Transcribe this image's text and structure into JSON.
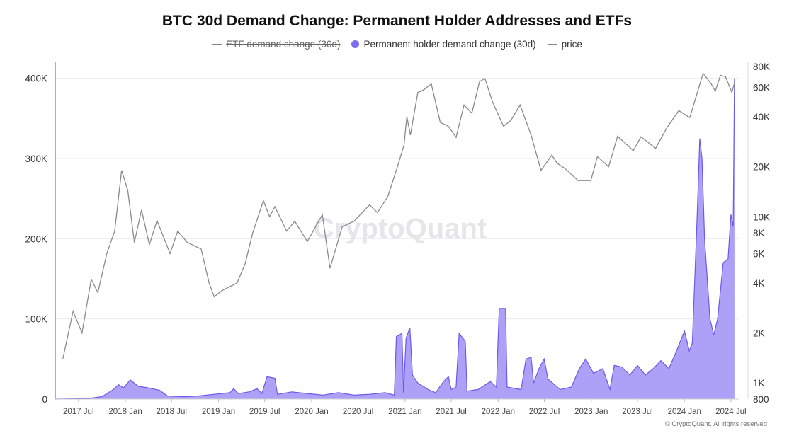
{
  "title": "BTC 30d Demand Change: Permanent Holder Addresses and ETFs",
  "legend": [
    {
      "label": "ETF demand change (30d)",
      "marker": "line",
      "hidden": true
    },
    {
      "label": "Permanent holder demand change (30d)",
      "marker": "dot",
      "hidden": false
    },
    {
      "label": "price",
      "marker": "line",
      "hidden": false
    }
  ],
  "watermark": "CryptoQuant",
  "copyright": "© CryptoQuant. All rights reserved",
  "colors": {
    "demand_fill": "#a89cf5",
    "demand_line": "#6a5ae8",
    "price_line": "#8a8a8e",
    "grid": "#ececec"
  },
  "chart_data": {
    "type": "area",
    "title": "BTC 30d Demand Change: Permanent Holder Addresses and ETFs",
    "x_ticks": [
      "2017 Jul",
      "2018 Jan",
      "2018 Jul",
      "2019 Jan",
      "2019 Jul",
      "2020 Jan",
      "2020 Jul",
      "2021 Jan",
      "2021 Jul",
      "2022 Jan",
      "2022 Jul",
      "2023 Jan",
      "2023 Jul",
      "2024 Jan",
      "2024 Jul"
    ],
    "x_range": [
      "2017-04-01",
      "2024-08-01"
    ],
    "y_left": {
      "ticks": [
        "0",
        "100K",
        "200K",
        "300K",
        "400K"
      ],
      "range": [
        0,
        420000
      ]
    },
    "y_right": {
      "scale": "log",
      "ticks": [
        "800",
        "1K",
        "2K",
        "4K",
        "6K",
        "8K",
        "10K",
        "20K",
        "40K",
        "60K",
        "80K"
      ],
      "range": [
        800,
        85000
      ]
    },
    "grid": true,
    "legend_position": "top-center",
    "series": [
      {
        "name": "Permanent holder demand change (30d)",
        "axis": "left",
        "style": "area",
        "points": [
          [
            "2017-04-01",
            0
          ],
          [
            "2017-08-01",
            500
          ],
          [
            "2017-10-01",
            3000
          ],
          [
            "2017-11-15",
            12000
          ],
          [
            "2017-12-05",
            18000
          ],
          [
            "2017-12-25",
            14000
          ],
          [
            "2018-01-20",
            24000
          ],
          [
            "2018-02-20",
            16000
          ],
          [
            "2018-04-01",
            14000
          ],
          [
            "2018-05-15",
            11000
          ],
          [
            "2018-06-15",
            4000
          ],
          [
            "2018-08-15",
            3000
          ],
          [
            "2018-10-15",
            4000
          ],
          [
            "2018-12-15",
            6000
          ],
          [
            "2019-02-15",
            8000
          ],
          [
            "2019-03-01",
            13000
          ],
          [
            "2019-03-20",
            7000
          ],
          [
            "2019-05-01",
            9000
          ],
          [
            "2019-06-01",
            13000
          ],
          [
            "2019-06-20",
            7000
          ],
          [
            "2019-07-10",
            28000
          ],
          [
            "2019-08-10",
            26000
          ],
          [
            "2019-08-20",
            6000
          ],
          [
            "2019-10-15",
            9000
          ],
          [
            "2019-12-15",
            7000
          ],
          [
            "2020-02-15",
            5000
          ],
          [
            "2020-04-15",
            8000
          ],
          [
            "2020-06-15",
            5000
          ],
          [
            "2020-08-15",
            6000
          ],
          [
            "2020-10-15",
            8000
          ],
          [
            "2020-11-20",
            5000
          ],
          [
            "2020-11-28",
            78000
          ],
          [
            "2020-12-20",
            82000
          ],
          [
            "2020-12-26",
            8000
          ],
          [
            "2021-01-05",
            76000
          ],
          [
            "2021-01-20",
            89000
          ],
          [
            "2021-01-30",
            30000
          ],
          [
            "2021-02-20",
            20000
          ],
          [
            "2021-04-01",
            12000
          ],
          [
            "2021-05-01",
            8000
          ],
          [
            "2021-06-01",
            22000
          ],
          [
            "2021-06-20",
            28000
          ],
          [
            "2021-07-01",
            12000
          ],
          [
            "2021-07-20",
            15000
          ],
          [
            "2021-08-01",
            82000
          ],
          [
            "2021-08-25",
            72000
          ],
          [
            "2021-09-01",
            10000
          ],
          [
            "2021-10-15",
            12000
          ],
          [
            "2021-12-01",
            22000
          ],
          [
            "2021-12-25",
            15000
          ],
          [
            "2022-01-05",
            113000
          ],
          [
            "2022-01-30",
            113000
          ],
          [
            "2022-02-05",
            15000
          ],
          [
            "2022-04-01",
            12000
          ],
          [
            "2022-04-20",
            50000
          ],
          [
            "2022-05-10",
            52000
          ],
          [
            "2022-05-20",
            20000
          ],
          [
            "2022-06-10",
            38000
          ],
          [
            "2022-06-30",
            50000
          ],
          [
            "2022-07-15",
            25000
          ],
          [
            "2022-09-01",
            12000
          ],
          [
            "2022-10-15",
            15000
          ],
          [
            "2022-11-15",
            38000
          ],
          [
            "2022-12-10",
            50000
          ],
          [
            "2023-01-10",
            32000
          ],
          [
            "2023-02-15",
            38000
          ],
          [
            "2023-03-15",
            12000
          ],
          [
            "2023-04-01",
            42000
          ],
          [
            "2023-05-01",
            40000
          ],
          [
            "2023-06-01",
            30000
          ],
          [
            "2023-07-01",
            42000
          ],
          [
            "2023-08-01",
            30000
          ],
          [
            "2023-09-01",
            38000
          ],
          [
            "2023-10-01",
            48000
          ],
          [
            "2023-11-01",
            38000
          ],
          [
            "2023-12-01",
            60000
          ],
          [
            "2024-01-01",
            85000
          ],
          [
            "2024-01-20",
            60000
          ],
          [
            "2024-02-01",
            70000
          ],
          [
            "2024-02-20",
            230000
          ],
          [
            "2024-03-01",
            325000
          ],
          [
            "2024-03-10",
            300000
          ],
          [
            "2024-03-20",
            200000
          ],
          [
            "2024-04-10",
            100000
          ],
          [
            "2024-04-25",
            80000
          ],
          [
            "2024-05-10",
            100000
          ],
          [
            "2024-06-01",
            170000
          ],
          [
            "2024-06-20",
            175000
          ],
          [
            "2024-07-01",
            230000
          ],
          [
            "2024-07-10",
            215000
          ],
          [
            "2024-07-15",
            400000
          ]
        ]
      },
      {
        "name": "price",
        "axis": "right",
        "style": "line",
        "points": [
          [
            "2017-05-01",
            1400
          ],
          [
            "2017-06-10",
            2700
          ],
          [
            "2017-07-15",
            2000
          ],
          [
            "2017-08-20",
            4200
          ],
          [
            "2017-09-15",
            3500
          ],
          [
            "2017-10-20",
            6000
          ],
          [
            "2017-11-20",
            8200
          ],
          [
            "2017-12-17",
            19000
          ],
          [
            "2018-01-10",
            14500
          ],
          [
            "2018-02-05",
            7000
          ],
          [
            "2018-03-05",
            11000
          ],
          [
            "2018-04-05",
            6800
          ],
          [
            "2018-05-05",
            9500
          ],
          [
            "2018-06-25",
            6000
          ],
          [
            "2018-07-25",
            8200
          ],
          [
            "2018-09-01",
            7000
          ],
          [
            "2018-10-25",
            6400
          ],
          [
            "2018-11-25",
            4000
          ],
          [
            "2018-12-15",
            3300
          ],
          [
            "2019-01-15",
            3600
          ],
          [
            "2019-03-15",
            4000
          ],
          [
            "2019-04-15",
            5200
          ],
          [
            "2019-05-15",
            8000
          ],
          [
            "2019-06-26",
            12500
          ],
          [
            "2019-07-20",
            10000
          ],
          [
            "2019-08-10",
            11500
          ],
          [
            "2019-09-25",
            8200
          ],
          [
            "2019-10-27",
            9400
          ],
          [
            "2019-12-15",
            7100
          ],
          [
            "2020-02-12",
            10300
          ],
          [
            "2020-03-13",
            4900
          ],
          [
            "2020-04-30",
            8700
          ],
          [
            "2020-06-15",
            9400
          ],
          [
            "2020-08-15",
            11800
          ],
          [
            "2020-09-15",
            10600
          ],
          [
            "2020-10-25",
            13200
          ],
          [
            "2020-11-30",
            19500
          ],
          [
            "2020-12-28",
            27000
          ],
          [
            "2021-01-08",
            40000
          ],
          [
            "2021-01-22",
            31000
          ],
          [
            "2021-02-20",
            56000
          ],
          [
            "2021-03-15",
            58000
          ],
          [
            "2021-04-14",
            63000
          ],
          [
            "2021-05-19",
            37000
          ],
          [
            "2021-06-20",
            35000
          ],
          [
            "2021-07-20",
            30000
          ],
          [
            "2021-08-20",
            47000
          ],
          [
            "2021-09-20",
            42000
          ],
          [
            "2021-10-20",
            65000
          ],
          [
            "2021-11-10",
            68000
          ],
          [
            "2021-12-10",
            49000
          ],
          [
            "2022-01-22",
            35000
          ],
          [
            "2022-02-20",
            38000
          ],
          [
            "2022-03-28",
            47000
          ],
          [
            "2022-05-10",
            31000
          ],
          [
            "2022-06-18",
            19000
          ],
          [
            "2022-07-30",
            23500
          ],
          [
            "2022-08-20",
            21000
          ],
          [
            "2022-09-20",
            19500
          ],
          [
            "2022-11-10",
            16500
          ],
          [
            "2022-12-30",
            16500
          ],
          [
            "2023-01-25",
            23000
          ],
          [
            "2023-03-10",
            20000
          ],
          [
            "2023-04-14",
            30500
          ],
          [
            "2023-06-15",
            25000
          ],
          [
            "2023-07-15",
            30300
          ],
          [
            "2023-09-10",
            25800
          ],
          [
            "2023-10-25",
            34500
          ],
          [
            "2023-12-10",
            43500
          ],
          [
            "2024-01-22",
            39500
          ],
          [
            "2024-02-28",
            61000
          ],
          [
            "2024-03-14",
            73000
          ],
          [
            "2024-04-15",
            63000
          ],
          [
            "2024-05-01",
            57000
          ],
          [
            "2024-05-21",
            71000
          ],
          [
            "2024-06-10",
            69500
          ],
          [
            "2024-07-05",
            56000
          ],
          [
            "2024-07-15",
            64000
          ]
        ]
      }
    ]
  }
}
